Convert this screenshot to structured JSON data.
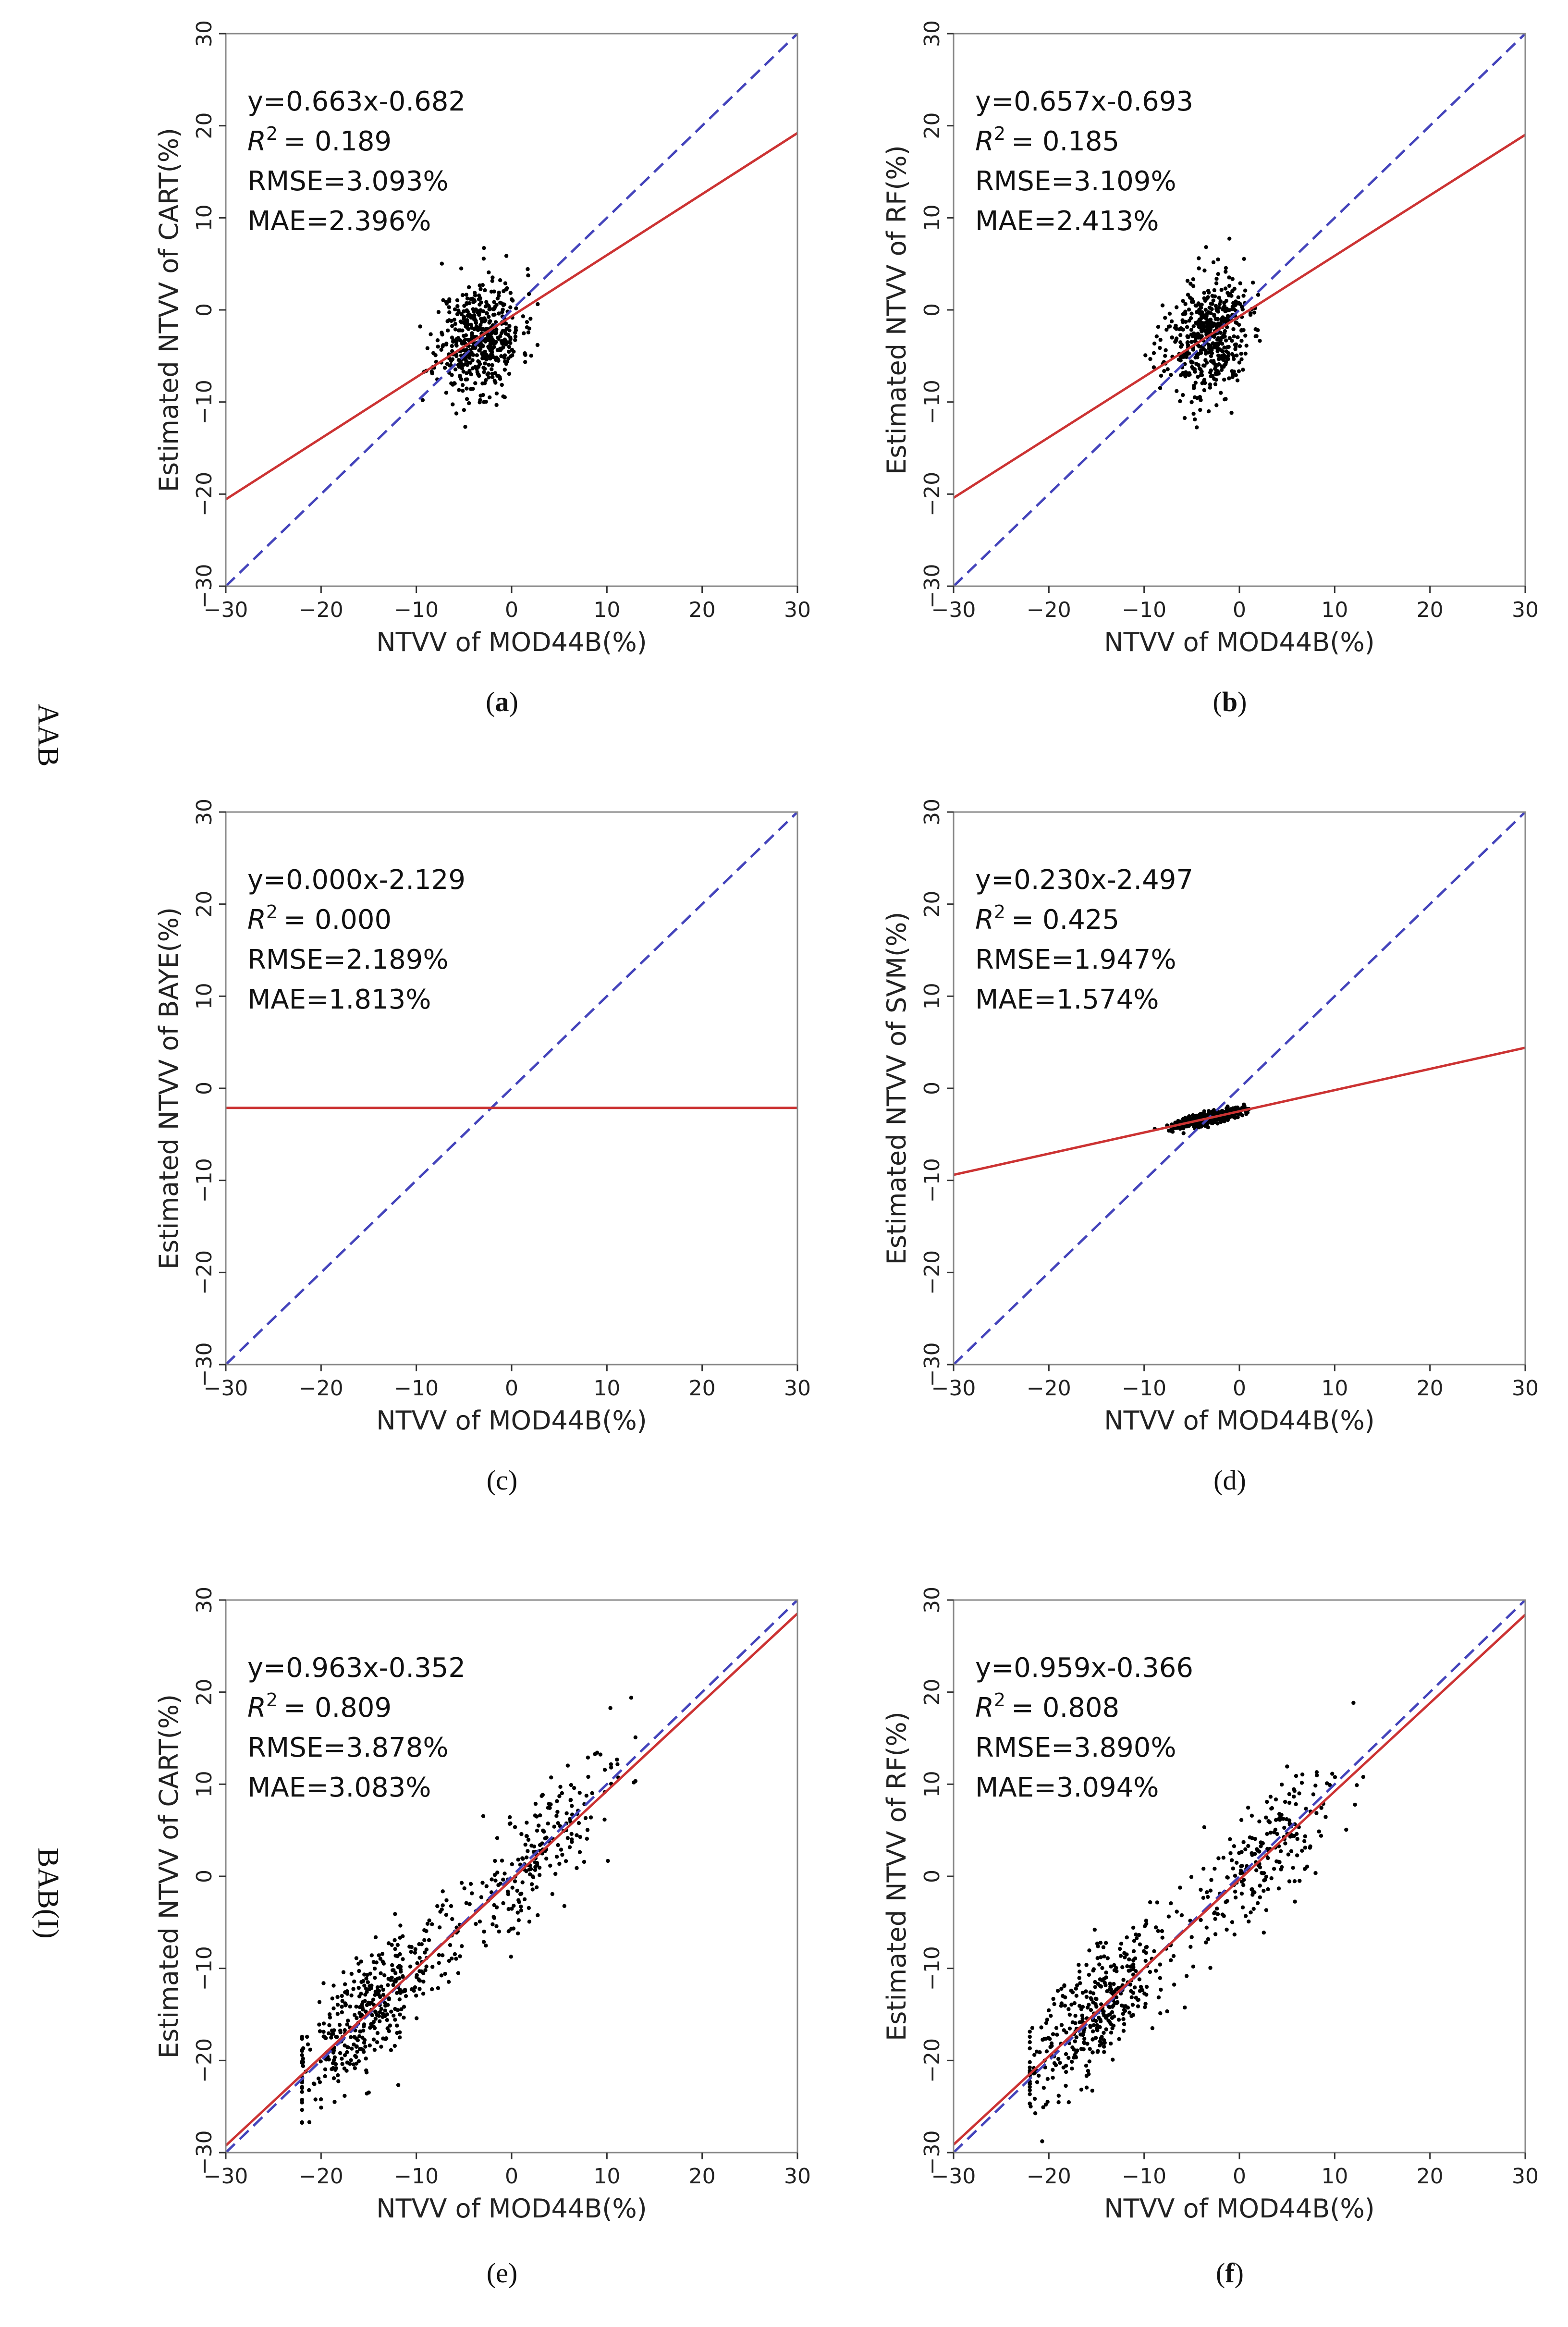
{
  "chart_data": [
    {
      "type": "scatter",
      "panel": "a",
      "caption": "(a)",
      "caption_bold": true,
      "xlabel": "NTVV of MOD44B(%)",
      "ylabel": "Estimated NTVV of CART(%)",
      "xlim": [
        -30,
        30
      ],
      "ylim": [
        -30,
        30
      ],
      "xticks": [
        "−30",
        "−20",
        "−10",
        "0",
        "10",
        "20",
        "30"
      ],
      "yticks": [
        "−30",
        "−20",
        "−10",
        "0",
        "10",
        "20",
        "30"
      ],
      "stats": {
        "equation": "y=0.663x-0.682",
        "r2": "= 0.189",
        "rmse": "RMSE=3.093%",
        "mae": "MAE=2.396%"
      },
      "fit": {
        "slope": 0.663,
        "intercept": -0.682
      },
      "scatter": {
        "n": 520,
        "x_mean": -3.4,
        "x_sd": 2.2,
        "y_mean": -3.0,
        "y_sd": 3.1,
        "seed": 11
      }
    },
    {
      "type": "scatter",
      "panel": "b",
      "caption": "(b)",
      "caption_bold": true,
      "xlabel": "NTVV of MOD44B(%)",
      "ylabel": "Estimated NTVV of RF(%)",
      "xlim": [
        -30,
        30
      ],
      "ylim": [
        -30,
        30
      ],
      "xticks": [
        "−30",
        "−20",
        "−10",
        "0",
        "10",
        "20",
        "30"
      ],
      "yticks": [
        "−30",
        "−20",
        "−10",
        "0",
        "10",
        "20",
        "30"
      ],
      "stats": {
        "equation": "y=0.657x-0.693",
        "r2": "= 0.185",
        "rmse": "RMSE=3.109%",
        "mae": "MAE=2.413%"
      },
      "fit": {
        "slope": 0.657,
        "intercept": -0.693
      },
      "scatter": {
        "n": 520,
        "x_mean": -3.4,
        "x_sd": 2.2,
        "y_mean": -3.0,
        "y_sd": 3.2,
        "seed": 23
      }
    },
    {
      "type": "scatter",
      "panel": "c",
      "caption": "(c)",
      "caption_bold": false,
      "xlabel": "NTVV of MOD44B(%)",
      "ylabel": "Estimated NTVV of BAYE(%)",
      "xlim": [
        -30,
        30
      ],
      "ylim": [
        -30,
        30
      ],
      "xticks": [
        "−30",
        "−20",
        "−10",
        "0",
        "10",
        "20",
        "30"
      ],
      "yticks": [
        "−30",
        "−20",
        "−10",
        "0",
        "10",
        "20",
        "30"
      ],
      "stats": {
        "equation": "y=0.000x-2.129",
        "r2": "= 0.000",
        "rmse": "RMSE=2.189%",
        "mae": "MAE=1.813%"
      },
      "fit": {
        "slope": 0.0,
        "intercept": -2.129
      },
      "scatter": {
        "n": 0,
        "x_mean": 0,
        "x_sd": 0,
        "y_mean": 0,
        "y_sd": 0,
        "seed": 1
      }
    },
    {
      "type": "scatter",
      "panel": "d",
      "caption": "(d)",
      "caption_bold": false,
      "xlabel": "NTVV of MOD44B(%)",
      "ylabel": "Estimated NTVV of SVM(%)",
      "xlim": [
        -30,
        30
      ],
      "ylim": [
        -30,
        30
      ],
      "xticks": [
        "−30",
        "−20",
        "−10",
        "0",
        "10",
        "20",
        "30"
      ],
      "yticks": [
        "−30",
        "−20",
        "−10",
        "0",
        "10",
        "20",
        "30"
      ],
      "stats": {
        "equation": "y=0.230x-2.497",
        "r2": "= 0.425",
        "rmse": "RMSE=1.947%",
        "mae": "MAE=1.574%"
      },
      "fit": {
        "slope": 0.23,
        "intercept": -2.497
      },
      "scatter": {
        "n": 420,
        "x_mean": -3.3,
        "x_sd": 1.8,
        "y_mean": -3.25,
        "y_sd": 0.35,
        "seed": 37,
        "follow_fit": true
      }
    },
    {
      "type": "scatter",
      "panel": "e",
      "caption": "(e)",
      "caption_bold": false,
      "xlabel": "NTVV of MOD44B(%)",
      "ylabel": "Estimated NTVV of CART(%)",
      "xlim": [
        -30,
        30
      ],
      "ylim": [
        -30,
        30
      ],
      "xticks": [
        "−30",
        "−20",
        "−10",
        "0",
        "10",
        "20",
        "30"
      ],
      "yticks": [
        "−30",
        "−20",
        "−10",
        "0",
        "10",
        "20",
        "30"
      ],
      "stats": {
        "equation": "y=0.963x-0.352",
        "r2": "= 0.809",
        "rmse": "RMSE=3.878%",
        "mae": "MAE=3.083%"
      },
      "fit": {
        "slope": 0.963,
        "intercept": -0.352
      },
      "scatter": {
        "n": 620,
        "x_min": -22,
        "x_max": 13,
        "noise_sd": 3.3,
        "seed": 53,
        "bimodal": true
      }
    },
    {
      "type": "scatter",
      "panel": "f",
      "caption": "(f)",
      "caption_bold": true,
      "xlabel": "NTVV of MOD44B(%)",
      "ylabel": "Estimated NTVV of RF(%)",
      "xlim": [
        -30,
        30
      ],
      "ylim": [
        -30,
        30
      ],
      "xticks": [
        "−30",
        "−20",
        "−10",
        "0",
        "10",
        "20",
        "30"
      ],
      "yticks": [
        "−30",
        "−20",
        "−10",
        "0",
        "10",
        "20",
        "30"
      ],
      "stats": {
        "equation": "y=0.959x-0.366",
        "r2": "= 0.808",
        "rmse": "RMSE=3.890%",
        "mae": "MAE=3.094%"
      },
      "fit": {
        "slope": 0.959,
        "intercept": -0.366
      },
      "scatter": {
        "n": 620,
        "x_min": -22,
        "x_max": 13,
        "noise_sd": 3.3,
        "seed": 71,
        "bimodal": true
      }
    }
  ],
  "row_labels": [
    "AAB",
    "BAB(I)"
  ],
  "colors": {
    "fit_line": "#cc3333",
    "identity_line": "#4444bb",
    "points": "#000000",
    "axes": "#888888"
  }
}
